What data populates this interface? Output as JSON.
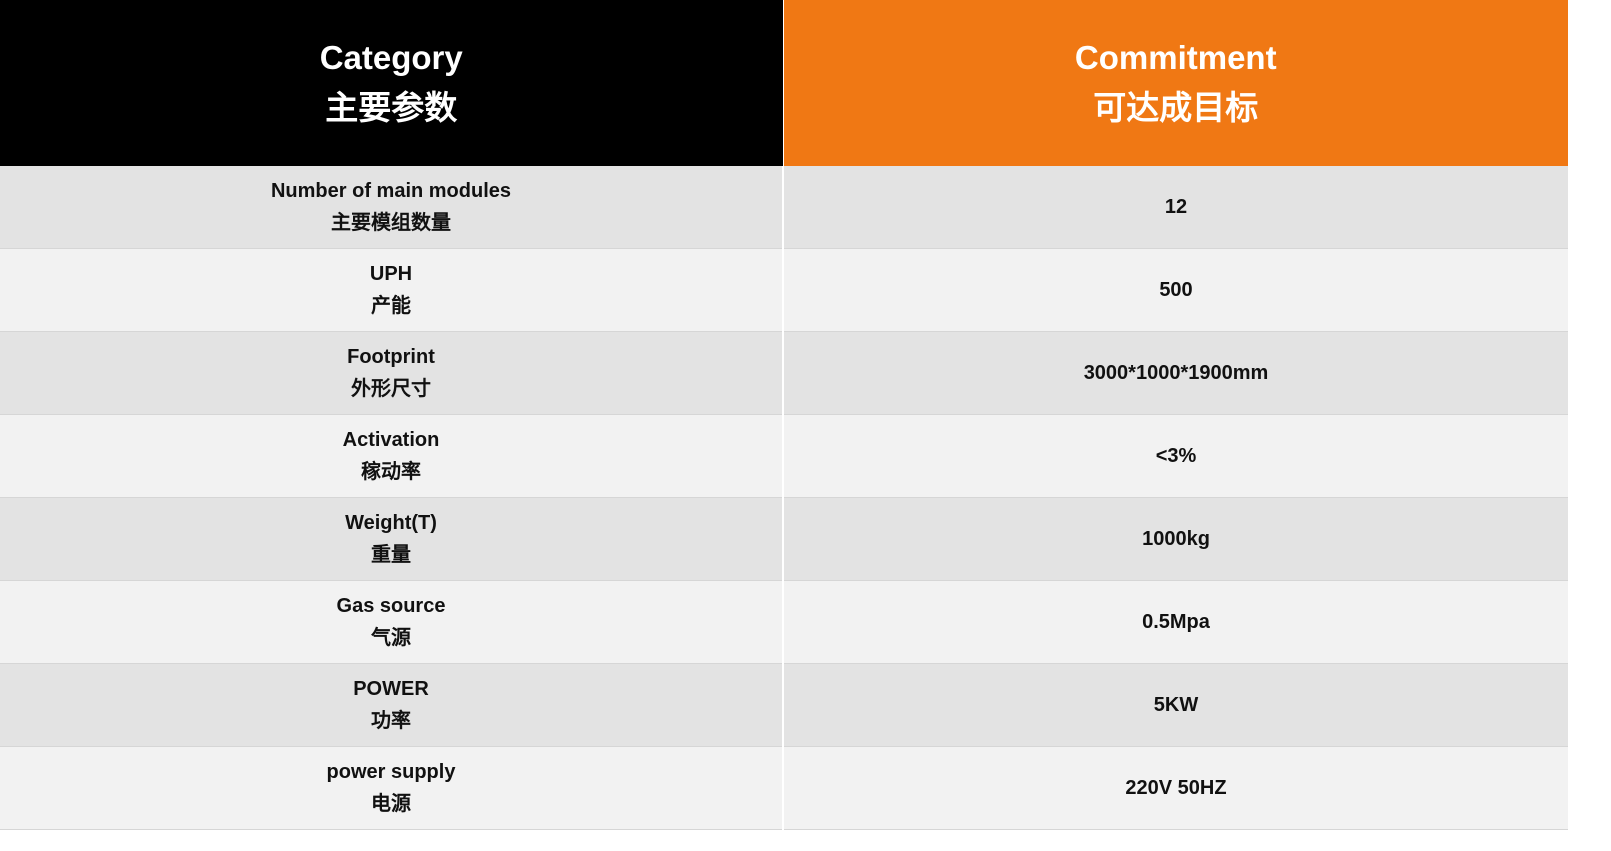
{
  "header": {
    "category_en": "Category",
    "category_cn": "主要参数",
    "commitment_en": "Commitment",
    "commitment_cn": "可达成目标"
  },
  "rows": [
    {
      "label_en": "Number of main modules",
      "label_cn": "主要模组数量",
      "value": "12"
    },
    {
      "label_en": "UPH",
      "label_cn": "产能",
      "value": "500"
    },
    {
      "label_en": "Footprint",
      "label_cn": "外形尺寸",
      "value": "3000*1000*1900mm"
    },
    {
      "label_en": "Activation",
      "label_cn": "稼动率",
      "value": "<3%"
    },
    {
      "label_en": "Weight(T)",
      "label_cn": "重量",
      "value": "1000kg"
    },
    {
      "label_en": "Gas source",
      "label_cn": "气源",
      "value": "0.5Mpa"
    },
    {
      "label_en": "POWER",
      "label_cn": "功率",
      "value": "5KW"
    },
    {
      "label_en": "power supply",
      "label_cn": "电源",
      "value": "220V 50HZ"
    }
  ],
  "colors": {
    "category_header_bg": "#000000",
    "commitment_header_bg": "#f07814",
    "row_dark": "#e3e3e3",
    "row_light": "#f2f2f2"
  }
}
